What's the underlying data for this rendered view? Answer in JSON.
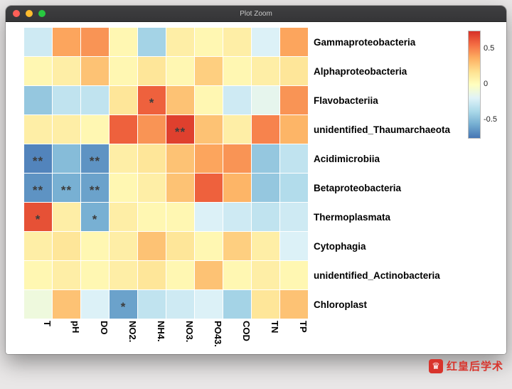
{
  "window": {
    "title": "Plot Zoom"
  },
  "colorbar": {
    "tick_labels": [
      "0.5",
      "0",
      "-0.5"
    ]
  },
  "watermark": {
    "text": "红皇后学术",
    "color": "#d8342c"
  },
  "chart_data": {
    "type": "heatmap",
    "title": "",
    "rows": [
      "Gammaproteobacteria",
      "Alphaproteobacteria",
      "Flavobacteriia",
      "unidentified_Thaumarchaeota",
      "Acidimicrobiia",
      "Betaproteobacteria",
      "Thermoplasmata",
      "Cytophagia",
      "unidentified_Actinobacteria",
      "Chloroplast"
    ],
    "columns": [
      "T",
      "pH",
      "DO",
      "NO2.",
      "NH4.",
      "NO3.",
      "PO43.",
      "COD",
      "TN",
      "TP"
    ],
    "values": [
      [
        -0.25,
        0.4,
        0.45,
        0.05,
        -0.4,
        0.1,
        0.05,
        0.1,
        -0.2,
        0.4
      ],
      [
        0.05,
        0.1,
        0.3,
        0.05,
        0.15,
        0.05,
        0.25,
        0.05,
        0.1,
        0.15
      ],
      [
        -0.45,
        -0.3,
        -0.3,
        0.15,
        0.6,
        0.3,
        0.05,
        -0.25,
        -0.15,
        0.45
      ],
      [
        0.1,
        0.1,
        0.05,
        0.6,
        0.45,
        0.7,
        0.3,
        0.1,
        0.5,
        0.35
      ],
      [
        -0.7,
        -0.5,
        -0.65,
        0.1,
        0.15,
        0.3,
        0.4,
        0.45,
        -0.45,
        -0.3
      ],
      [
        -0.65,
        -0.55,
        -0.6,
        0.05,
        0.1,
        0.3,
        0.6,
        0.35,
        -0.45,
        -0.35
      ],
      [
        0.65,
        0.1,
        -0.55,
        0.1,
        0.05,
        0.05,
        -0.2,
        -0.25,
        -0.3,
        -0.25
      ],
      [
        0.1,
        0.15,
        0.05,
        0.1,
        0.3,
        0.15,
        0.05,
        0.25,
        0.1,
        -0.2
      ],
      [
        0.05,
        0.1,
        0.05,
        0.1,
        0.15,
        0.05,
        0.3,
        0.05,
        0.1,
        0.05
      ],
      [
        -0.1,
        0.3,
        -0.2,
        -0.6,
        -0.3,
        -0.25,
        -0.2,
        -0.4,
        0.15,
        0.3
      ]
    ],
    "significance": [
      [
        "",
        "",
        "",
        "",
        "",
        "",
        "",
        "",
        "",
        ""
      ],
      [
        "",
        "",
        "",
        "",
        "",
        "",
        "",
        "",
        "",
        ""
      ],
      [
        "",
        "",
        "",
        "",
        "*",
        "",
        "",
        "",
        "",
        ""
      ],
      [
        "",
        "",
        "",
        "",
        "",
        "**",
        "",
        "",
        "",
        ""
      ],
      [
        "**",
        "",
        "**",
        "",
        "",
        "",
        "",
        "",
        "",
        ""
      ],
      [
        "**",
        "**",
        "**",
        "",
        "",
        "",
        "",
        "",
        "",
        ""
      ],
      [
        "*",
        "",
        "*",
        "",
        "",
        "",
        "",
        "",
        "",
        ""
      ],
      [
        "",
        "",
        "",
        "",
        "",
        "",
        "",
        "",
        "",
        ""
      ],
      [
        "",
        "",
        "",
        "",
        "",
        "",
        "",
        "",
        "",
        ""
      ],
      [
        "",
        "",
        "",
        "*",
        "",
        "",
        "",
        "",
        "",
        ""
      ]
    ],
    "value_range": [
      -0.75,
      0.75
    ],
    "legend_ticks": [
      0.5,
      0,
      -0.5
    ],
    "legend_position": "top-right",
    "grid": true,
    "colormap": "RdYlBu_r",
    "color_stops": [
      [
        0.0,
        "#4575b4"
      ],
      [
        0.125,
        "#74add1"
      ],
      [
        0.25,
        "#abd9e9"
      ],
      [
        0.375,
        "#e0f3f8"
      ],
      [
        0.5,
        "#ffffbf"
      ],
      [
        0.625,
        "#fee090"
      ],
      [
        0.75,
        "#fdae61"
      ],
      [
        0.875,
        "#f46d43"
      ],
      [
        1.0,
        "#d73027"
      ]
    ]
  }
}
